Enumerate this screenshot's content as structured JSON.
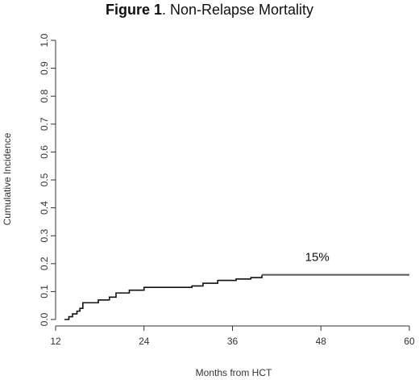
{
  "chart_data": {
    "type": "line",
    "title_bold": "Figure 1",
    "title_rest": ". Non-Relapse Mortality",
    "xlabel": "Months from HCT",
    "ylabel": "Cumulative Incidence",
    "xlim": [
      12,
      60
    ],
    "ylim": [
      0,
      1.0
    ],
    "x_ticks": [
      12,
      24,
      36,
      48,
      60
    ],
    "y_ticks": [
      "0.0",
      "0.1",
      "0.2",
      "0.3",
      "0.4",
      "0.5",
      "0.6",
      "0.7",
      "0.8",
      "0.9",
      "1.0"
    ],
    "grid": false,
    "series": [
      {
        "x": [
          13.2,
          13.8,
          14.3,
          14.9,
          15.3,
          15.7,
          17.8,
          19.3,
          20.2,
          22.0,
          24.0,
          30.5,
          32.0,
          34.0,
          36.5,
          38.5,
          40.0,
          60.0
        ],
        "y": [
          0.0,
          0.01,
          0.02,
          0.03,
          0.04,
          0.06,
          0.07,
          0.08,
          0.095,
          0.105,
          0.115,
          0.12,
          0.13,
          0.14,
          0.145,
          0.15,
          0.16,
          0.16
        ]
      }
    ],
    "annotations": [
      {
        "text": "15%",
        "x": 47.5,
        "y": 0.21
      }
    ],
    "colors": {
      "line": "#111111",
      "line_tail": "#555555",
      "axis": "#333333"
    }
  }
}
